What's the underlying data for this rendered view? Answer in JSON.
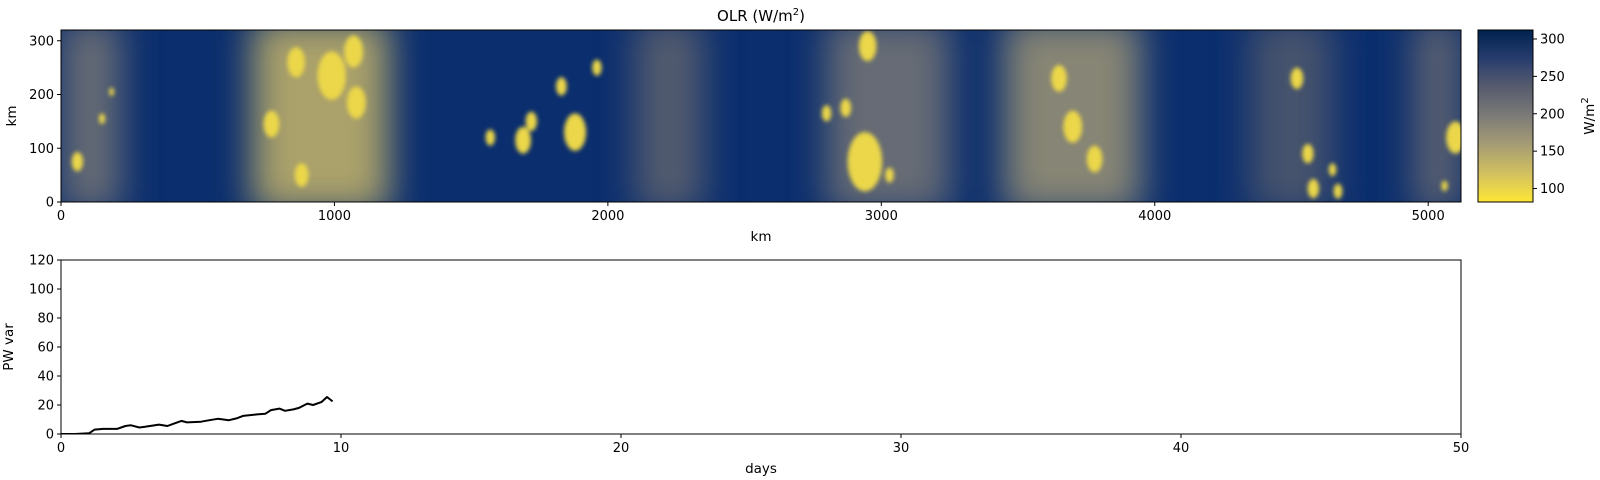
{
  "chart_data": [
    {
      "type": "heatmap",
      "title_main": "OLR (W/m",
      "title_sup": "2",
      "title_tail": ")",
      "xlabel": "km",
      "ylabel": "km",
      "xlim": [
        0,
        5120
      ],
      "ylim": [
        0,
        320
      ],
      "xticks": [
        "0",
        "1000",
        "2000",
        "3000",
        "4000",
        "5000"
      ],
      "xtick_values": [
        0,
        1000,
        2000,
        3000,
        4000,
        5000
      ],
      "yticks": [
        "0",
        "100",
        "200",
        "300"
      ],
      "ytick_values": [
        0,
        100,
        200,
        300
      ],
      "colorbar": {
        "label_main": "W/m",
        "label_sup": "2",
        "range": [
          82,
          312
        ],
        "ticks": [
          "100",
          "150",
          "200",
          "250",
          "300"
        ],
        "tick_values": [
          100,
          150,
          200,
          250,
          300
        ],
        "colormap": "cividis_r",
        "colors": [
          "#00224e",
          "#273d6e",
          "#575c6d",
          "#7c7b78",
          "#a59c74",
          "#d2c060",
          "#fde737"
        ]
      },
      "cloudy_bands_km": [
        {
          "x": [
            0,
            220
          ],
          "level": 0.45
        },
        {
          "x": [
            700,
            1200
          ],
          "level": 0.75
        },
        {
          "x": [
            2100,
            2350
          ],
          "level": 0.35
        },
        {
          "x": [
            2800,
            3250
          ],
          "level": 0.45
        },
        {
          "x": [
            3450,
            3950
          ],
          "level": 0.6
        },
        {
          "x": [
            4350,
            4650
          ],
          "level": 0.3
        },
        {
          "x": [
            4950,
            5120
          ],
          "level": 0.4
        }
      ],
      "convective_cells_km": [
        {
          "x": 60,
          "y": 75,
          "r": 18
        },
        {
          "x": 150,
          "y": 155,
          "r": 10
        },
        {
          "x": 185,
          "y": 205,
          "r": 8
        },
        {
          "x": 860,
          "y": 260,
          "r": 28
        },
        {
          "x": 880,
          "y": 50,
          "r": 22
        },
        {
          "x": 990,
          "y": 235,
          "r": 45
        },
        {
          "x": 1070,
          "y": 280,
          "r": 30
        },
        {
          "x": 1080,
          "y": 185,
          "r": 30
        },
        {
          "x": 770,
          "y": 145,
          "r": 25
        },
        {
          "x": 1570,
          "y": 120,
          "r": 15
        },
        {
          "x": 1690,
          "y": 115,
          "r": 25
        },
        {
          "x": 1720,
          "y": 150,
          "r": 18
        },
        {
          "x": 1830,
          "y": 215,
          "r": 17
        },
        {
          "x": 1880,
          "y": 130,
          "r": 35
        },
        {
          "x": 1960,
          "y": 250,
          "r": 15
        },
        {
          "x": 2800,
          "y": 165,
          "r": 15
        },
        {
          "x": 2870,
          "y": 175,
          "r": 17
        },
        {
          "x": 2950,
          "y": 290,
          "r": 28
        },
        {
          "x": 2940,
          "y": 75,
          "r": 55
        },
        {
          "x": 3030,
          "y": 50,
          "r": 14
        },
        {
          "x": 3650,
          "y": 230,
          "r": 25
        },
        {
          "x": 3700,
          "y": 140,
          "r": 30
        },
        {
          "x": 3780,
          "y": 80,
          "r": 25
        },
        {
          "x": 4520,
          "y": 230,
          "r": 20
        },
        {
          "x": 4560,
          "y": 90,
          "r": 18
        },
        {
          "x": 4580,
          "y": 25,
          "r": 18
        },
        {
          "x": 4650,
          "y": 60,
          "r": 12
        },
        {
          "x": 4670,
          "y": 20,
          "r": 14
        },
        {
          "x": 5060,
          "y": 30,
          "r": 10
        },
        {
          "x": 5100,
          "y": 120,
          "r": 30
        }
      ]
    },
    {
      "type": "line",
      "xlabel": "days",
      "ylabel": "PW var",
      "xlim": [
        0,
        50
      ],
      "ylim": [
        0,
        120
      ],
      "xticks": [
        "0",
        "10",
        "20",
        "30",
        "40",
        "50"
      ],
      "xtick_values": [
        0,
        10,
        20,
        30,
        40,
        50
      ],
      "yticks": [
        "0",
        "20",
        "40",
        "60",
        "80",
        "100",
        "120"
      ],
      "ytick_values": [
        0,
        20,
        40,
        60,
        80,
        100,
        120
      ],
      "line_color": "#000000",
      "series": [
        {
          "x": [
            0,
            0.5,
            1.0,
            1.2,
            1.5,
            2.0,
            2.3,
            2.5,
            2.8,
            3.0,
            3.5,
            3.8,
            4.0,
            4.3,
            4.5,
            5.0,
            5.3,
            5.6,
            5.8,
            6.0,
            6.3,
            6.5,
            7.0,
            7.3,
            7.5,
            7.8,
            8.0,
            8.3,
            8.5,
            8.8,
            9.0,
            9.3,
            9.5,
            9.7
          ],
          "y": [
            0,
            0,
            0.5,
            3,
            3.5,
            3.5,
            5.5,
            6,
            4.5,
            5,
            6.5,
            5.5,
            7,
            9,
            8,
            8.5,
            9.5,
            10.5,
            10,
            9.5,
            11,
            12.5,
            13.5,
            14,
            16.5,
            17.5,
            16,
            17,
            18,
            21,
            20,
            22,
            25.5,
            22.5
          ]
        }
      ]
    }
  ]
}
